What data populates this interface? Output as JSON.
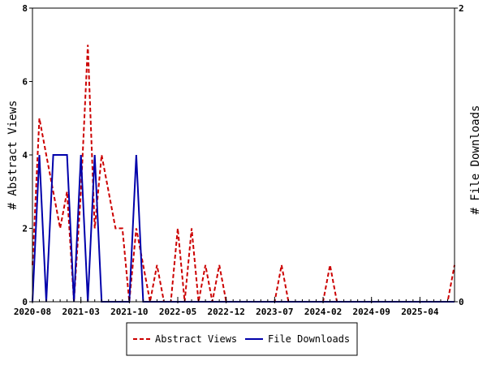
{
  "chart_data": {
    "type": "line",
    "title": "",
    "xlabel": "",
    "ylabel": "# Abstract Views",
    "ylabel_right": "# File Downloads",
    "ylim": [
      0,
      8
    ],
    "ylim_right": [
      0,
      2
    ],
    "yticks": [
      0,
      2,
      4,
      6,
      8
    ],
    "yticks_right": [
      0,
      2
    ],
    "xlim": [
      "2020-08",
      "2025-09"
    ],
    "xticks": [
      "2020-08",
      "2021-03",
      "2021-10",
      "2022-05",
      "2022-12",
      "2023-07",
      "2024-02",
      "2024-09",
      "2025-04"
    ],
    "grid": false,
    "legend_position": "bottom-center",
    "series": [
      {
        "name": "Abstract Views",
        "axis": "left",
        "color": "#cc0000",
        "style": "dashed",
        "x": [
          "2020-08",
          "2020-09",
          "2020-10",
          "2020-11",
          "2020-12",
          "2021-01",
          "2021-02",
          "2021-03",
          "2021-04",
          "2021-05",
          "2021-06",
          "2021-07",
          "2021-08",
          "2021-09",
          "2021-10",
          "2021-11",
          "2021-12",
          "2022-01",
          "2022-02",
          "2022-03",
          "2022-04",
          "2022-05",
          "2022-06",
          "2022-07",
          "2022-08",
          "2022-09",
          "2022-10",
          "2022-11",
          "2022-12",
          "2023-01",
          "2023-02",
          "2023-03",
          "2023-04",
          "2023-05",
          "2023-06",
          "2023-07",
          "2023-08",
          "2023-09",
          "2023-10",
          "2023-11",
          "2023-12",
          "2024-01",
          "2024-02",
          "2024-03",
          "2024-04",
          "2024-05",
          "2024-06",
          "2024-07",
          "2024-08",
          "2024-09",
          "2024-10",
          "2024-11",
          "2024-12",
          "2025-01",
          "2025-02",
          "2025-03",
          "2025-04",
          "2025-05",
          "2025-06",
          "2025-07",
          "2025-08",
          "2025-09"
        ],
        "values": [
          1,
          5,
          4,
          3,
          2,
          3,
          0,
          3,
          7,
          2,
          4,
          3,
          2,
          2,
          0,
          2,
          1,
          0,
          1,
          0,
          0,
          2,
          0,
          2,
          0,
          1,
          0,
          1,
          0,
          0,
          0,
          0,
          0,
          0,
          0,
          0,
          1,
          0,
          0,
          0,
          0,
          0,
          0,
          1,
          0,
          0,
          0,
          0,
          0,
          0,
          0,
          0,
          0,
          0,
          0,
          0,
          0,
          0,
          0,
          0,
          0,
          1
        ]
      },
      {
        "name": "File Downloads",
        "axis": "right",
        "color": "#0000aa",
        "style": "solid",
        "x": [
          "2020-08",
          "2020-09",
          "2020-10",
          "2020-11",
          "2020-12",
          "2021-01",
          "2021-02",
          "2021-03",
          "2021-04",
          "2021-05",
          "2021-06",
          "2021-07",
          "2021-08",
          "2021-09",
          "2021-10",
          "2021-11",
          "2021-12",
          "2022-01",
          "2022-02",
          "2022-03",
          "2022-04",
          "2022-05",
          "2022-06",
          "2022-07",
          "2022-08",
          "2022-09",
          "2022-10",
          "2022-11",
          "2022-12",
          "2023-01",
          "2023-02",
          "2023-03",
          "2023-04",
          "2023-05",
          "2023-06",
          "2023-07",
          "2023-08",
          "2023-09",
          "2023-10",
          "2023-11",
          "2023-12",
          "2024-01",
          "2024-02",
          "2024-03",
          "2024-04",
          "2024-05",
          "2024-06",
          "2024-07",
          "2024-08",
          "2024-09",
          "2024-10",
          "2024-11",
          "2024-12",
          "2025-01",
          "2025-02",
          "2025-03",
          "2025-04",
          "2025-05",
          "2025-06",
          "2025-07",
          "2025-08",
          "2025-09"
        ],
        "values": [
          0,
          1,
          0,
          1,
          1,
          1,
          0,
          1,
          0,
          1,
          0,
          0,
          0,
          0,
          0,
          1,
          0,
          0,
          0,
          0,
          0,
          0,
          0,
          0,
          0,
          0,
          0,
          0,
          0,
          0,
          0,
          0,
          0,
          0,
          0,
          0,
          0,
          0,
          0,
          0,
          0,
          0,
          0,
          0,
          0,
          0,
          0,
          0,
          0,
          0,
          0,
          0,
          0,
          0,
          0,
          0,
          0,
          0,
          0,
          0,
          0,
          0
        ]
      }
    ]
  }
}
